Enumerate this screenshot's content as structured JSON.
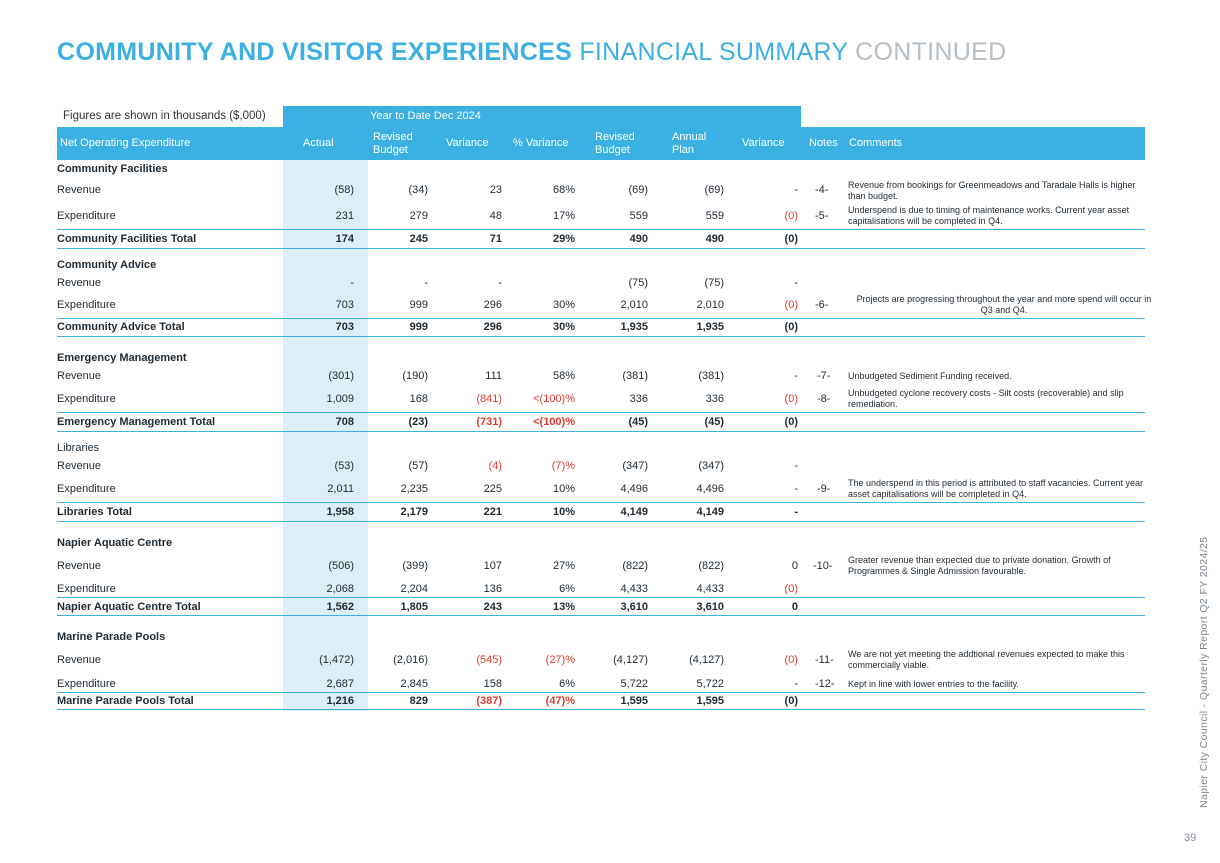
{
  "title": {
    "bold": "COMMUNITY AND VISITOR EXPERIENCES",
    "light": "FINANCIAL SUMMARY",
    "muted": "CONTINUED"
  },
  "figures_note": "Figures are shown in thousands ($,000)",
  "ytd_label": "Year to Date  Dec 2024",
  "headers": {
    "item": "Net Operating Expenditure",
    "actual": "Actual",
    "revised_budget": "Revised Budget",
    "variance": "Variance",
    "pct_variance": "% Variance",
    "annual_revised_budget": "Revised Budget",
    "annual_plan": "Annual Plan",
    "annual_variance": "Variance",
    "notes": "Notes",
    "comments": "Comments"
  },
  "sections": [
    {
      "name": "Community Facilities",
      "rows": [
        {
          "label": "Revenue",
          "actual": "(58)",
          "revised_budget": "(34)",
          "variance": "23",
          "pct_variance": "68%",
          "annual_revised_budget": "(69)",
          "annual_plan": "(69)",
          "annual_variance": "-",
          "note": "-4-",
          "comment": "Revenue from bookings for Greenmeadows and Taradale Halls is higher than budget."
        },
        {
          "label": "Expenditure",
          "actual": "231",
          "revised_budget": "279",
          "variance": "48",
          "pct_variance": "17%",
          "annual_revised_budget": "559",
          "annual_plan": "559",
          "annual_variance": "(0)",
          "note": "-5-",
          "comment": "Underspend is due to timing of maintenance works.  Current year asset capitalisations will be completed in Q4."
        }
      ],
      "total": {
        "label": "Community Facilities Total",
        "actual": "174",
        "revised_budget": "245",
        "variance": "71",
        "pct_variance": "29%",
        "annual_revised_budget": "490",
        "annual_plan": "490",
        "annual_variance": "(0)"
      }
    },
    {
      "name": "Community Advice",
      "rows": [
        {
          "label": "Revenue",
          "actual": "-",
          "revised_budget": "-",
          "variance": "-",
          "pct_variance": "",
          "annual_revised_budget": "(75)",
          "annual_plan": "(75)",
          "annual_variance": "-",
          "note": "",
          "comment": ""
        },
        {
          "label": "Expenditure",
          "actual": "703",
          "revised_budget": "999",
          "variance": "296",
          "pct_variance": "30%",
          "annual_revised_budget": "2,010",
          "annual_plan": "2,010",
          "annual_variance": "(0)",
          "note": "-6-",
          "comment": "Projects are progressing throughout the year and more spend will occur in Q3 and Q4."
        }
      ],
      "total": {
        "label": "Community Advice Total",
        "actual": "703",
        "revised_budget": "999",
        "variance": "296",
        "pct_variance": "30%",
        "annual_revised_budget": "1,935",
        "annual_plan": "1,935",
        "annual_variance": "(0)"
      }
    },
    {
      "name": "Emergency Management",
      "rows": [
        {
          "label": "Revenue",
          "actual": "(301)",
          "revised_budget": "(190)",
          "variance": "111",
          "pct_variance": "58%",
          "annual_revised_budget": "(381)",
          "annual_plan": "(381)",
          "annual_variance": "-",
          "note": "-7-",
          "comment": "Unbudgeted Sediment Funding received."
        },
        {
          "label": "Expenditure",
          "actual": "1,009",
          "revised_budget": "168",
          "variance": "(841)",
          "pct_variance": "<(100)%",
          "annual_revised_budget": "336",
          "annual_plan": "336",
          "annual_variance": "(0)",
          "note": "-8-",
          "comment": "Unbudgeted cyclone recovery costs - Silt costs (recoverable) and slip remediation."
        }
      ],
      "total": {
        "label": "Emergency Management Total",
        "actual": "708",
        "revised_budget": "(23)",
        "variance": "(731)",
        "pct_variance": "<(100)%",
        "annual_revised_budget": "(45)",
        "annual_plan": "(45)",
        "annual_variance": "(0)"
      }
    },
    {
      "name": "Libraries",
      "rows": [
        {
          "label": "Revenue",
          "actual": "(53)",
          "revised_budget": "(57)",
          "variance": "(4)",
          "pct_variance": "(7)%",
          "annual_revised_budget": "(347)",
          "annual_plan": "(347)",
          "annual_variance": "-",
          "note": "",
          "comment": ""
        },
        {
          "label": "Expenditure",
          "actual": "2,011",
          "revised_budget": "2,235",
          "variance": "225",
          "pct_variance": "10%",
          "annual_revised_budget": "4,496",
          "annual_plan": "4,496",
          "annual_variance": "-",
          "note": "-9-",
          "comment": "The underspend in this period is attributed to staff vacancies.  Current year asset capitalisations will be completed in Q4."
        }
      ],
      "total": {
        "label": "Libraries Total",
        "actual": "1,958",
        "revised_budget": "2,179",
        "variance": "221",
        "pct_variance": "10%",
        "annual_revised_budget": "4,149",
        "annual_plan": "4,149",
        "annual_variance": "-"
      }
    },
    {
      "name": "Napier Aquatic Centre",
      "rows": [
        {
          "label": "Revenue",
          "actual": "(506)",
          "revised_budget": "(399)",
          "variance": "107",
          "pct_variance": "27%",
          "annual_revised_budget": "(822)",
          "annual_plan": "(822)",
          "annual_variance": "0",
          "note": "-10-",
          "comment": "Greater revenue than expected due to private donation. Growth of Programmes & Single Admission favourable."
        },
        {
          "label": "Expenditure",
          "actual": "2,068",
          "revised_budget": "2,204",
          "variance": "136",
          "pct_variance": "6%",
          "annual_revised_budget": "4,433",
          "annual_plan": "4,433",
          "annual_variance": "(0)",
          "note": "",
          "comment": ""
        }
      ],
      "total": {
        "label": "Napier Aquatic Centre Total",
        "actual": "1,562",
        "revised_budget": "1,805",
        "variance": "243",
        "pct_variance": "13%",
        "annual_revised_budget": "3,610",
        "annual_plan": "3,610",
        "annual_variance": "0"
      }
    },
    {
      "name": "Marine Parade Pools",
      "rows": [
        {
          "label": "Revenue",
          "actual": "(1,472)",
          "revised_budget": "(2,016)",
          "variance": "(545)",
          "pct_variance": "(27)%",
          "annual_revised_budget": "(4,127)",
          "annual_plan": "(4,127)",
          "annual_variance": "(0)",
          "note": "-11-",
          "comment": "We are not yet meeting the addtional revenues expected to make this commercially viable."
        },
        {
          "label": "Expenditure",
          "actual": "2,687",
          "revised_budget": "2,845",
          "variance": "158",
          "pct_variance": "6%",
          "annual_revised_budget": "5,722",
          "annual_plan": "5,722",
          "annual_variance": "-",
          "note": "-12-",
          "comment": "Kept in line with lower entries to the facility."
        }
      ],
      "total": {
        "label": "Marine Parade Pools Total",
        "actual": "1,216",
        "revised_budget": "829",
        "variance": "(387)",
        "pct_variance": "(47)%",
        "annual_revised_budget": "1,595",
        "annual_plan": "1,595",
        "annual_variance": "(0)"
      }
    }
  ],
  "side_text": "Napier City Council - Quarterly Report Q2 FY 2024/25",
  "page_number": "39",
  "colors": {
    "accent": "#3bb0e3",
    "negative": "#e03c31",
    "actual_column": "#dbeef9",
    "muted_title": "#b6bec5"
  }
}
